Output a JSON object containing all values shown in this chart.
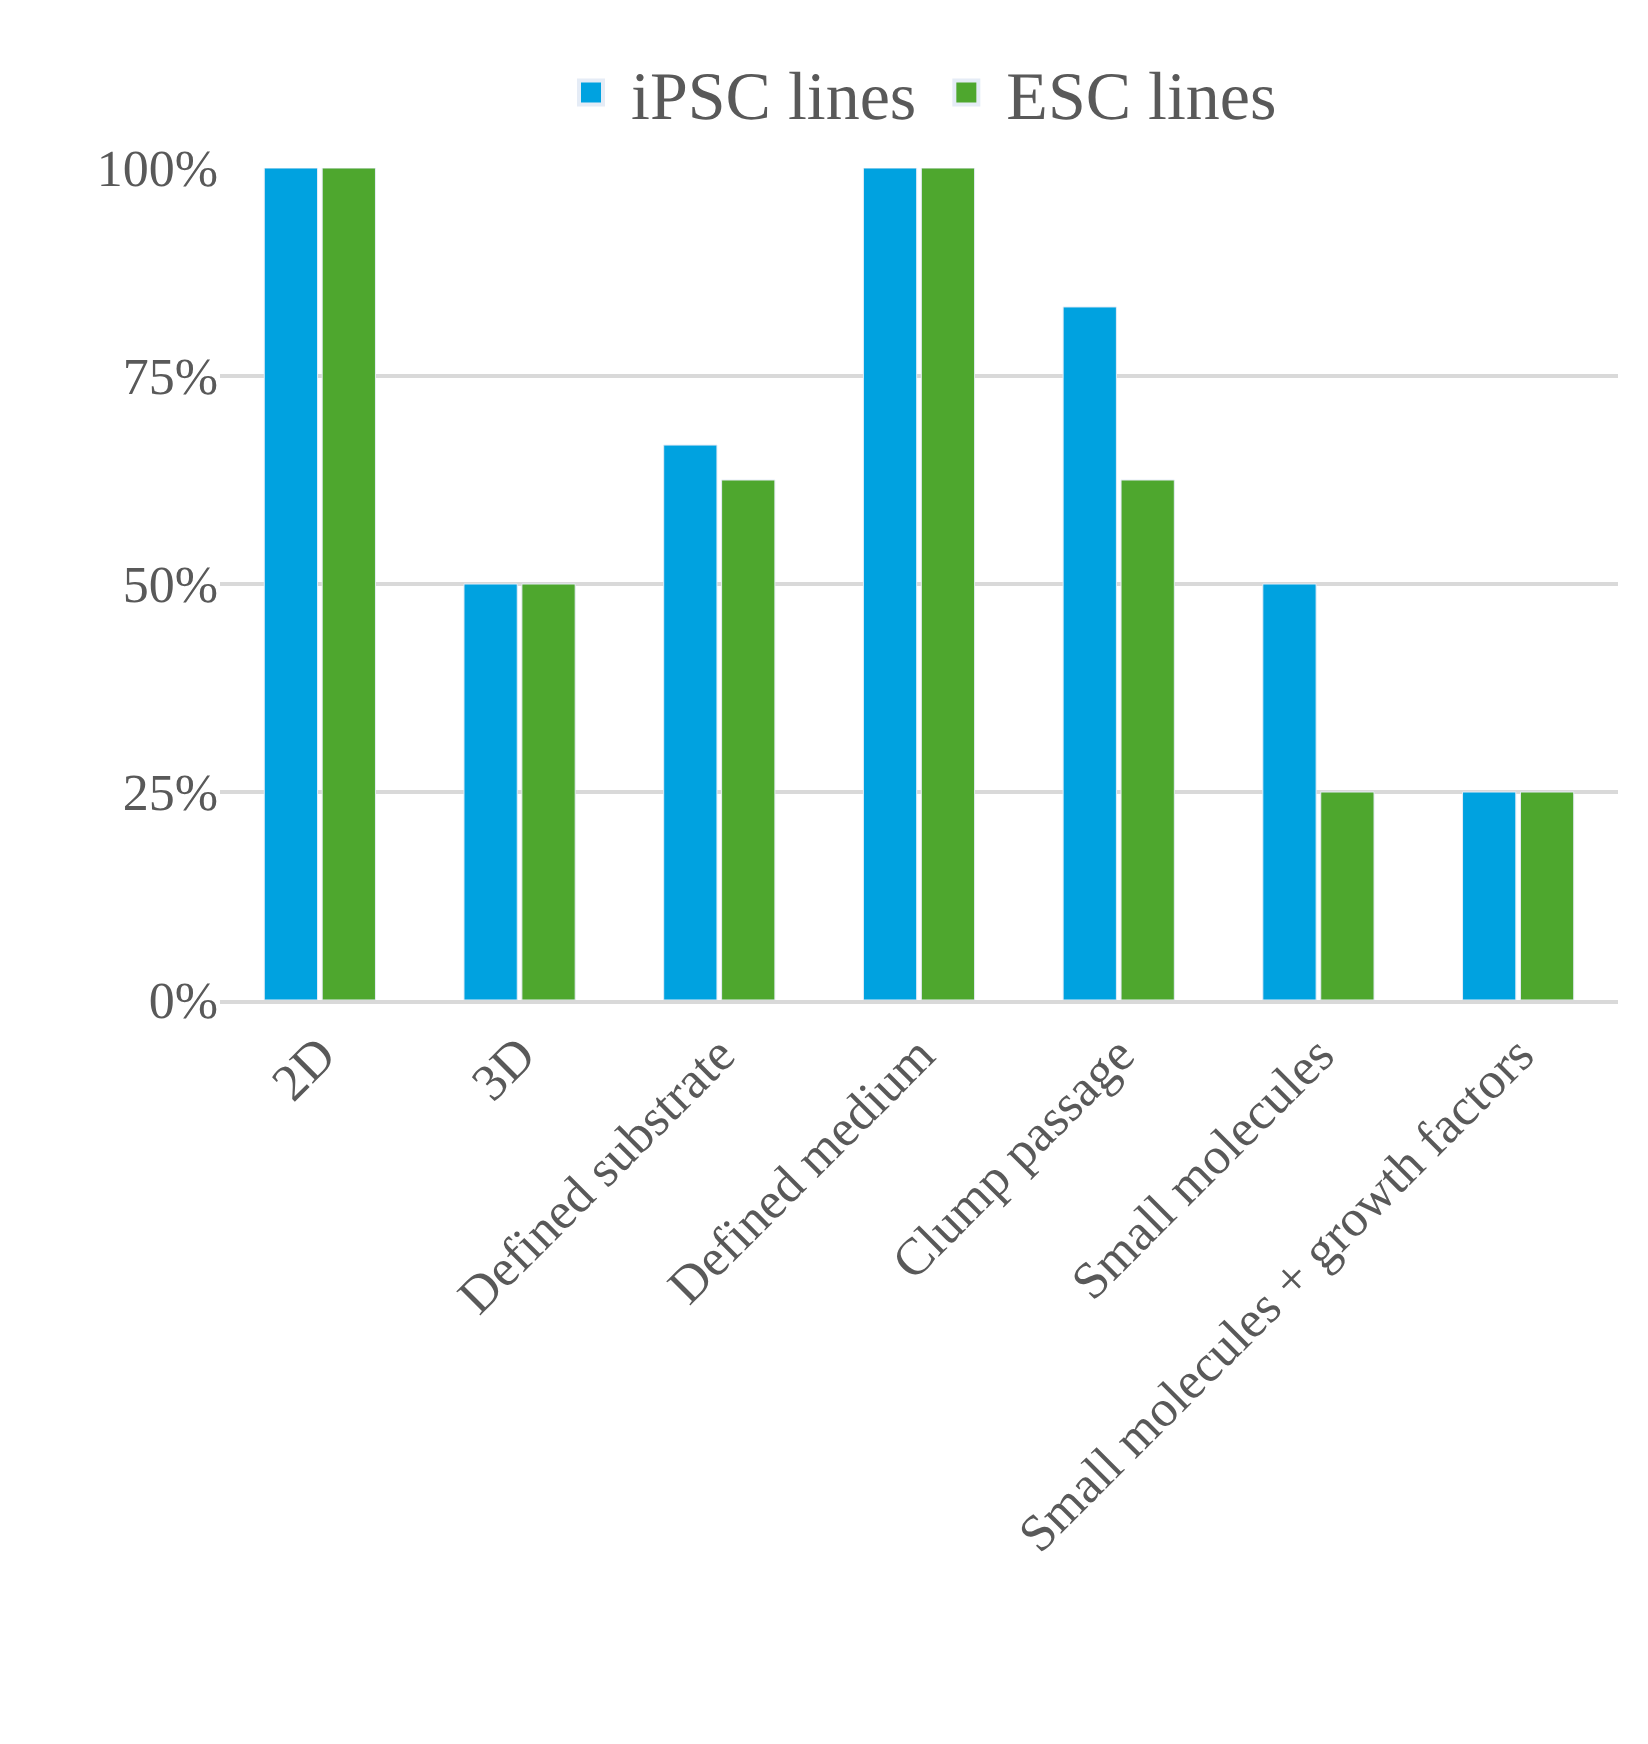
{
  "chart_data": {
    "type": "bar",
    "categories": [
      "2D",
      "3D",
      "Defined substrate",
      "Defined medium",
      "Clump passage",
      "Small molecules",
      "Small molecules + growth factors"
    ],
    "series": [
      {
        "name": "iPSC lines",
        "color": "#00a2e0",
        "values": [
          100,
          50,
          66.7,
          100,
          83.3,
          50,
          25
        ]
      },
      {
        "name": "ESC lines",
        "color": "#4ea72e",
        "values": [
          100,
          50,
          62.5,
          100,
          62.5,
          25,
          25
        ]
      }
    ],
    "ylim": [
      0,
      100
    ],
    "yticks": [
      {
        "value": 0,
        "label": "0%"
      },
      {
        "value": 25,
        "label": "25%"
      },
      {
        "value": 50,
        "label": "50%"
      },
      {
        "value": 75,
        "label": "75%"
      },
      {
        "value": 100,
        "label": "100%"
      }
    ],
    "grid": "y",
    "legend": "top"
  }
}
